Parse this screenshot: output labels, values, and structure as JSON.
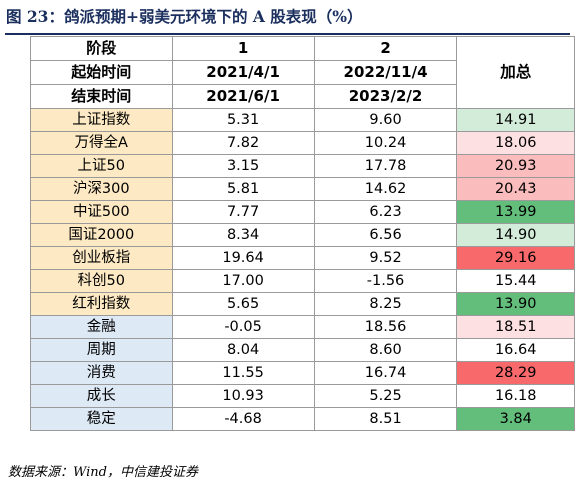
{
  "title": "图 23：鸽派预期+弱美元环境下的 A 股表现（%）",
  "header": {
    "row1": [
      "阶段",
      "1",
      "2"
    ],
    "row2": [
      "起始时间",
      "2021/4/1",
      "2022/11/4"
    ],
    "row3": [
      "结束时间",
      "2021/6/1",
      "2023/2/2"
    ],
    "sum_label": "加总"
  },
  "colors": {
    "green_strong": "#63be7b",
    "green_light": "#d3ecd9",
    "red_strong": "#f8696b",
    "red_mid": "#fbbcbd",
    "red_light": "#fde0e1",
    "white": "#ffffff",
    "label_yellow": "#fde9c4",
    "label_blue": "#dde9f5",
    "title_navy": "#1b2f5e"
  },
  "rows": [
    {
      "label": "上证指数",
      "v1": "5.31",
      "v2": "9.60",
      "sum": "14.91",
      "sum_color": "#d3ecd9",
      "group": "y"
    },
    {
      "label": "万得全A",
      "v1": "7.82",
      "v2": "10.24",
      "sum": "18.06",
      "sum_color": "#fde0e1",
      "group": "y"
    },
    {
      "label": "上证50",
      "v1": "3.15",
      "v2": "17.78",
      "sum": "20.93",
      "sum_color": "#fbbcbd",
      "group": "y"
    },
    {
      "label": "沪深300",
      "v1": "5.81",
      "v2": "14.62",
      "sum": "20.43",
      "sum_color": "#fbbcbd",
      "group": "y"
    },
    {
      "label": "中证500",
      "v1": "7.77",
      "v2": "6.23",
      "sum": "13.99",
      "sum_color": "#63be7b",
      "group": "y"
    },
    {
      "label": "国证2000",
      "v1": "8.34",
      "v2": "6.56",
      "sum": "14.90",
      "sum_color": "#d3ecd9",
      "group": "y"
    },
    {
      "label": "创业板指",
      "v1": "19.64",
      "v2": "9.52",
      "sum": "29.16",
      "sum_color": "#f8696b",
      "group": "y"
    },
    {
      "label": "科创50",
      "v1": "17.00",
      "v2": "-1.56",
      "sum": "15.44",
      "sum_color": "#ffffff",
      "group": "y"
    },
    {
      "label": "红利指数",
      "v1": "5.65",
      "v2": "8.25",
      "sum": "13.90",
      "sum_color": "#63be7b",
      "group": "y"
    },
    {
      "label": "金融",
      "v1": "-0.05",
      "v2": "18.56",
      "sum": "18.51",
      "sum_color": "#fde0e1",
      "group": "b"
    },
    {
      "label": "周期",
      "v1": "8.04",
      "v2": "8.60",
      "sum": "16.64",
      "sum_color": "#ffffff",
      "group": "b"
    },
    {
      "label": "消费",
      "v1": "11.55",
      "v2": "16.74",
      "sum": "28.29",
      "sum_color": "#f8696b",
      "group": "b"
    },
    {
      "label": "成长",
      "v1": "10.93",
      "v2": "5.25",
      "sum": "16.18",
      "sum_color": "#ffffff",
      "group": "b"
    },
    {
      "label": "稳定",
      "v1": "-4.68",
      "v2": "8.51",
      "sum": "3.84",
      "sum_color": "#63be7b",
      "group": "b"
    }
  ],
  "footer": "数据来源：Wind，中信建投证券"
}
